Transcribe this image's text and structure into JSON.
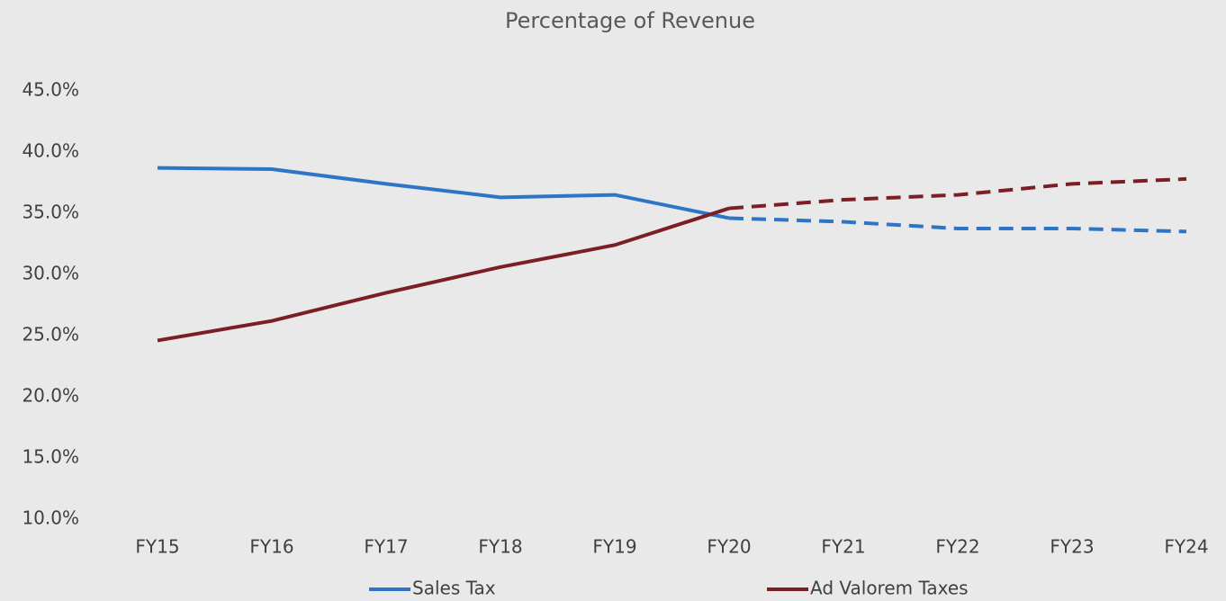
{
  "chart_data": {
    "type": "line",
    "title": "Percentage of Revenue",
    "categories": [
      "FY15",
      "FY16",
      "FY17",
      "FY18",
      "FY19",
      "FY20",
      "FY21",
      "FY22",
      "FY23",
      "FY24"
    ],
    "forecast_start": "FY20",
    "series": [
      {
        "name": "Sales Tax",
        "color": "#2e75c7",
        "values": [
          38.7,
          38.6,
          37.4,
          36.3,
          36.5,
          34.6,
          34.3,
          33.75,
          33.75,
          33.5
        ]
      },
      {
        "name": "Ad Valorem Taxes",
        "color": "#7b1e25",
        "values": [
          24.6,
          26.2,
          28.5,
          30.6,
          32.4,
          35.4,
          36.1,
          36.5,
          37.4,
          37.8
        ]
      }
    ],
    "ylim": [
      10,
      45
    ],
    "yticks": [
      {
        "value": 10,
        "label": "10.0%"
      },
      {
        "value": 15,
        "label": "15.0%"
      },
      {
        "value": 20,
        "label": "20.0%"
      },
      {
        "value": 25,
        "label": "25.0%"
      },
      {
        "value": 30,
        "label": "30.0%"
      },
      {
        "value": 35,
        "label": "35.0%"
      },
      {
        "value": 40,
        "label": "40.0%"
      },
      {
        "value": 45,
        "label": "45.0%"
      }
    ],
    "grid": false,
    "legend": "bottom"
  }
}
